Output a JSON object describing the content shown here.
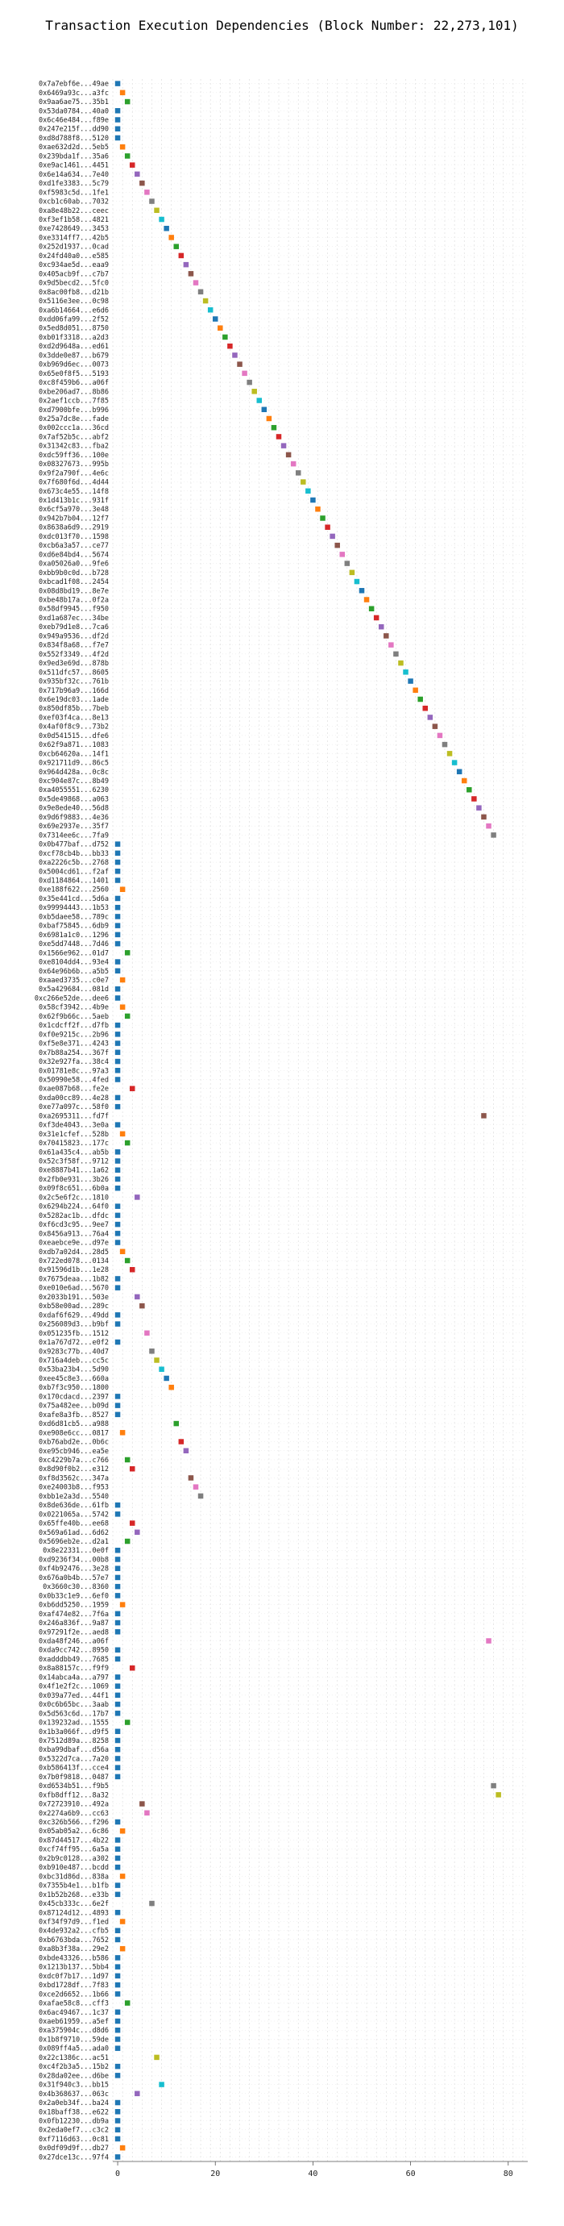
{
  "chart_data": {
    "type": "scatter",
    "title": "Transaction Execution Dependencies (Block Number: 22,273,101)",
    "xlabel": "",
    "ylabel": "",
    "xlim": [
      -1,
      84
    ],
    "xticks": [
      0,
      20,
      40,
      60,
      80
    ],
    "grid": true,
    "palette": [
      "#1f77b4",
      "#ff7f0e",
      "#2ca02c",
      "#d62728",
      "#9467bd",
      "#8c564b",
      "#e377c2",
      "#7f7f7f",
      "#bcbd22",
      "#17becf"
    ],
    "transactions": [
      {
        "hash": "0x7a7ebf6e...49ae",
        "x": 0
      },
      {
        "hash": "0x6469a93c...a3fc",
        "x": 1
      },
      {
        "hash": "0x9aa6ae75...35b1",
        "x": 2
      },
      {
        "hash": "0x53da0784...40a0",
        "x": 0
      },
      {
        "hash": "0x6c46e484...f89e",
        "x": 0
      },
      {
        "hash": "0x247e215f...dd90",
        "x": 0
      },
      {
        "hash": "0xd8d788f8...5120",
        "x": 0
      },
      {
        "hash": "0xae632d2d...5eb5",
        "x": 1
      },
      {
        "hash": "0x239bda1f...35a6",
        "x": 2
      },
      {
        "hash": "0xe9ac1461...4451",
        "x": 3
      },
      {
        "hash": "0x6e14a634...7e40",
        "x": 4
      },
      {
        "hash": "0xd1fe3383...5c79",
        "x": 5
      },
      {
        "hash": "0xf5983c5d...1fe1",
        "x": 6
      },
      {
        "hash": "0xcb1c60ab...7032",
        "x": 7
      },
      {
        "hash": "0xa8e48b22...ceec",
        "x": 8
      },
      {
        "hash": "0xf3ef1b58...4821",
        "x": 9
      },
      {
        "hash": "0xe7428649...3453",
        "x": 10
      },
      {
        "hash": "0xe3314ff7...42b5",
        "x": 11
      },
      {
        "hash": "0x252d1937...0cad",
        "x": 12
      },
      {
        "hash": "0x24fd40a0...e585",
        "x": 13
      },
      {
        "hash": "0xc934ae5d...eaa9",
        "x": 14
      },
      {
        "hash": "0x405acb9f...c7b7",
        "x": 15
      },
      {
        "hash": "0x9d5becd2...5fc0",
        "x": 16
      },
      {
        "hash": "0x8ac00fb8...d21b",
        "x": 17
      },
      {
        "hash": "0x5116e3ee...0c98",
        "x": 18
      },
      {
        "hash": "0xa6b14664...e6d6",
        "x": 19
      },
      {
        "hash": "0xdd06fa99...2f52",
        "x": 20
      },
      {
        "hash": "0x5ed8d051...8750",
        "x": 21
      },
      {
        "hash": "0xb01f3318...a2d3",
        "x": 22
      },
      {
        "hash": "0xd2d9648a...ed61",
        "x": 23
      },
      {
        "hash": "0x3dde0e87...b679",
        "x": 24
      },
      {
        "hash": "0xb969d6ec...0073",
        "x": 25
      },
      {
        "hash": "0x65e0f8f5...5193",
        "x": 26
      },
      {
        "hash": "0xc8f459b6...a06f",
        "x": 27
      },
      {
        "hash": "0xbe206ad7...8b86",
        "x": 28
      },
      {
        "hash": "0x2aef1ccb...7f85",
        "x": 29
      },
      {
        "hash": "0xd7900bfe...b996",
        "x": 30
      },
      {
        "hash": "0x25a7dc8e...fade",
        "x": 31
      },
      {
        "hash": "0x002ccc1a...36cd",
        "x": 32
      },
      {
        "hash": "0x7af52b5c...abf2",
        "x": 33
      },
      {
        "hash": "0x31342c83...fba2",
        "x": 34
      },
      {
        "hash": "0xdc59ff36...100e",
        "x": 35
      },
      {
        "hash": "0x08327673...995b",
        "x": 36
      },
      {
        "hash": "0x9f2a790f...4e6c",
        "x": 37
      },
      {
        "hash": "0x7f680f6d...4d44",
        "x": 38
      },
      {
        "hash": "0x673c4e55...14f8",
        "x": 39
      },
      {
        "hash": "0x1d413b1c...931f",
        "x": 40
      },
      {
        "hash": "0x6cf5a970...3e48",
        "x": 41
      },
      {
        "hash": "0x942b7b04...12f7",
        "x": 42
      },
      {
        "hash": "0x8638a6d9...2919",
        "x": 43
      },
      {
        "hash": "0xdc013f70...1598",
        "x": 44
      },
      {
        "hash": "0xcb6a3a57...ce77",
        "x": 45
      },
      {
        "hash": "0xd6e84bd4...5674",
        "x": 46
      },
      {
        "hash": "0xa05026a0...9fe6",
        "x": 47
      },
      {
        "hash": "0xbb9b0c0d...b728",
        "x": 48
      },
      {
        "hash": "0xbcad1f08...2454",
        "x": 49
      },
      {
        "hash": "0x08d8bd19...8e7e",
        "x": 50
      },
      {
        "hash": "0xbe48b17a...0f2a",
        "x": 51
      },
      {
        "hash": "0x58df9945...f950",
        "x": 52
      },
      {
        "hash": "0xd1a687ec...34be",
        "x": 53
      },
      {
        "hash": "0xeb79d1e8...7ca6",
        "x": 54
      },
      {
        "hash": "0x949a9536...df2d",
        "x": 55
      },
      {
        "hash": "0x834f8a68...f7e7",
        "x": 56
      },
      {
        "hash": "0x552f3349...4f2d",
        "x": 57
      },
      {
        "hash": "0x9ed3e69d...878b",
        "x": 58
      },
      {
        "hash": "0x511dfc57...8605",
        "x": 59
      },
      {
        "hash": "0x935bf32c...761b",
        "x": 60
      },
      {
        "hash": "0x717b96a9...166d",
        "x": 61
      },
      {
        "hash": "0x6e19dc03...1ade",
        "x": 62
      },
      {
        "hash": "0x850df85b...7beb",
        "x": 63
      },
      {
        "hash": "0xef03f4ca...8e13",
        "x": 64
      },
      {
        "hash": "0x4af0f8c9...73b2",
        "x": 65
      },
      {
        "hash": "0x0d541515...dfe6",
        "x": 66
      },
      {
        "hash": "0x62f9a871...1083",
        "x": 67
      },
      {
        "hash": "0xcb64620a...14f1",
        "x": 68
      },
      {
        "hash": "0x921711d9...86c5",
        "x": 69
      },
      {
        "hash": "0x964d428a...0c8c",
        "x": 70
      },
      {
        "hash": "0xc904e87c...8b49",
        "x": 71
      },
      {
        "hash": "0xa4055551...6230",
        "x": 72
      },
      {
        "hash": "0x5de49868...a063",
        "x": 73
      },
      {
        "hash": "0x9e8ede40...56d8",
        "x": 74
      },
      {
        "hash": "0x9d6f9883...4e36",
        "x": 75
      },
      {
        "hash": "0x69e2937e...35f7",
        "x": 76
      },
      {
        "hash": "0x7314ee6c...7fa9",
        "x": 77
      },
      {
        "hash": "0x0b477baf...d752",
        "x": 0
      },
      {
        "hash": "0xcf78cb4b...bb33",
        "x": 0
      },
      {
        "hash": "0xa2226c5b...2768",
        "x": 0
      },
      {
        "hash": "0x5004cd61...f2af",
        "x": 0
      },
      {
        "hash": "0xd1184864...1401",
        "x": 0
      },
      {
        "hash": "0xe188f622...2560",
        "x": 1
      },
      {
        "hash": "0x35e441cd...5d6a",
        "x": 0
      },
      {
        "hash": "0x99994443...1b53",
        "x": 0
      },
      {
        "hash": "0xb5daee58...789c",
        "x": 0
      },
      {
        "hash": "0xbaf75845...6db9",
        "x": 0
      },
      {
        "hash": "0x6981a1c0...1296",
        "x": 0
      },
      {
        "hash": "0xe5dd7448...7d46",
        "x": 0
      },
      {
        "hash": "0x1566e962...01d7",
        "x": 2
      },
      {
        "hash": "0xe8104dd4...93e4",
        "x": 0
      },
      {
        "hash": "0x64e96b6b...a5b5",
        "x": 0
      },
      {
        "hash": "0xaaed3735...c0e7",
        "x": 1
      },
      {
        "hash": "0x5a429684...081d",
        "x": 0
      },
      {
        "hash": "0xc266e52de...dee6",
        "x": 0
      },
      {
        "hash": "0x58cf3942...4b9e",
        "x": 1
      },
      {
        "hash": "0x62f9b66c...5aeb",
        "x": 2
      },
      {
        "hash": "0x1cdcff2f...d7fb",
        "x": 0
      },
      {
        "hash": "0xf0e9215c...2b96",
        "x": 0
      },
      {
        "hash": "0xf5e8e371...4243",
        "x": 0
      },
      {
        "hash": "0x7b88a254...367f",
        "x": 0
      },
      {
        "hash": "0x32e927fa...38c4",
        "x": 0
      },
      {
        "hash": "0x01781e8c...97a3",
        "x": 0
      },
      {
        "hash": "0x50990e58...4fed",
        "x": 0
      },
      {
        "hash": "0xae087b68...fe2e",
        "x": 3
      },
      {
        "hash": "0xda00cc89...4e28",
        "x": 0
      },
      {
        "hash": "0xe77a097c...58f0",
        "x": 0
      },
      {
        "hash": "0xa2695311...fd7f",
        "x": 75
      },
      {
        "hash": "0xf3de4043...3e0a",
        "x": 0
      },
      {
        "hash": "0x31e1cfef...528b",
        "x": 1
      },
      {
        "hash": "0x70415823...177c",
        "x": 2
      },
      {
        "hash": "0x61a435c4...ab5b",
        "x": 0
      },
      {
        "hash": "0x52c3f58f...9712",
        "x": 0
      },
      {
        "hash": "0xe8887b41...1a62",
        "x": 0
      },
      {
        "hash": "0x2fb0e931...3b26",
        "x": 0
      },
      {
        "hash": "0x09f8c651...6b0a",
        "x": 0
      },
      {
        "hash": "0x2c5e6f2c...1810",
        "x": 4
      },
      {
        "hash": "0x6294b224...64f0",
        "x": 0
      },
      {
        "hash": "0x5282ac1b...dfdc",
        "x": 0
      },
      {
        "hash": "0xf6cd3c95...9ee7",
        "x": 0
      },
      {
        "hash": "0x8456a913...76a4",
        "x": 0
      },
      {
        "hash": "0xeaebce9e...d97e",
        "x": 0
      },
      {
        "hash": "0xdb7a02d4...28d5",
        "x": 1
      },
      {
        "hash": "0x722ed078...0134",
        "x": 2
      },
      {
        "hash": "0x91596d1b...1e28",
        "x": 3
      },
      {
        "hash": "0x7675deaa...1b82",
        "x": 0
      },
      {
        "hash": "0xe010e6ad...5670",
        "x": 0
      },
      {
        "hash": "0x2033b191...503e",
        "x": 4
      },
      {
        "hash": "0xb58e00ad...289c",
        "x": 5
      },
      {
        "hash": "0xdaf6f629...49dd",
        "x": 0
      },
      {
        "hash": "0x256089d3...b9bf",
        "x": 0
      },
      {
        "hash": "0x051235fb...1512",
        "x": 6
      },
      {
        "hash": "0x1a767d72...e0f2",
        "x": 0
      },
      {
        "hash": "0x9283c77b...40d7",
        "x": 7
      },
      {
        "hash": "0x716a4deb...cc5c",
        "x": 8
      },
      {
        "hash": "0x53ba23b4...5d90",
        "x": 9
      },
      {
        "hash": "0xee45c8e3...660a",
        "x": 10
      },
      {
        "hash": "0xb7f3c950...1800",
        "x": 11
      },
      {
        "hash": "0x170cdacd...2397",
        "x": 0
      },
      {
        "hash": "0x75a482ee...b09d",
        "x": 0
      },
      {
        "hash": "0xafe8a3fb...8527",
        "x": 0
      },
      {
        "hash": "0xd6d81cb5...a988",
        "x": 12
      },
      {
        "hash": "0xe908e6cc...0817",
        "x": 1
      },
      {
        "hash": "0xb76abd2e...0b6c",
        "x": 13
      },
      {
        "hash": "0xe95cb946...ea5e",
        "x": 14
      },
      {
        "hash": "0xc4229b7a...c766",
        "x": 2
      },
      {
        "hash": "0x8d90f0b2...e312",
        "x": 3
      },
      {
        "hash": "0xf8d3562c...347a",
        "x": 15
      },
      {
        "hash": "0xe24003b8...f953",
        "x": 16
      },
      {
        "hash": "0xbb1e2a3d...5540",
        "x": 17
      },
      {
        "hash": "0x8de636de...61fb",
        "x": 0
      },
      {
        "hash": "0x0221065a...5742",
        "x": 0
      },
      {
        "hash": "0x65ffe40b...ee68",
        "x": 3
      },
      {
        "hash": "0x569a61ad...6d62",
        "x": 4
      },
      {
        "hash": "0x5696eb2e...d2a1",
        "x": 2
      },
      {
        "hash": "0x8e22331...0e0f",
        "x": 0
      },
      {
        "hash": "0xd9236f34...00b8",
        "x": 0
      },
      {
        "hash": "0xf4b92476...3e28",
        "x": 0
      },
      {
        "hash": "0x676a0b4b...57e7",
        "x": 0
      },
      {
        "hash": "0x3660c30...8360",
        "x": 0
      },
      {
        "hash": "0x0b33c1e9...6ef0",
        "x": 0
      },
      {
        "hash": "0xb6dd5250...1959",
        "x": 1
      },
      {
        "hash": "0xaf474e82...7f6a",
        "x": 0
      },
      {
        "hash": "0x246a836f...9a87",
        "x": 0
      },
      {
        "hash": "0x97291f2e...aed8",
        "x": 0
      },
      {
        "hash": "0xda48f246...a06f",
        "x": 76
      },
      {
        "hash": "0xda9cc742...8950",
        "x": 0
      },
      {
        "hash": "0xadddbb49...7685",
        "x": 0
      },
      {
        "hash": "0x8a88157c...f9f9",
        "x": 3
      },
      {
        "hash": "0x14abca4a...a797",
        "x": 0
      },
      {
        "hash": "0x4f1e2f2c...1069",
        "x": 0
      },
      {
        "hash": "0x039a77ed...44f1",
        "x": 0
      },
      {
        "hash": "0x0c6b65bc...3aab",
        "x": 0
      },
      {
        "hash": "0x5d563c6d...17b7",
        "x": 0
      },
      {
        "hash": "0x139232ad...1555",
        "x": 2
      },
      {
        "hash": "0x1b3a066f...d9f5",
        "x": 0
      },
      {
        "hash": "0x7512d89a...8258",
        "x": 0
      },
      {
        "hash": "0xba99dbaf...d56a",
        "x": 0
      },
      {
        "hash": "0x5322d7ca...7a20",
        "x": 0
      },
      {
        "hash": "0xb586413f...cce4",
        "x": 0
      },
      {
        "hash": "0x7b0f9818...0487",
        "x": 0
      },
      {
        "hash": "0xd6534b51...f9b5",
        "x": 77
      },
      {
        "hash": "0xfb8dff12...8a32",
        "x": 78
      },
      {
        "hash": "0x72723910...492a",
        "x": 5
      },
      {
        "hash": "0x2274a6b9...cc63",
        "x": 6
      },
      {
        "hash": "0xc326b566...f296",
        "x": 0
      },
      {
        "hash": "0x05ab05a2...6c86",
        "x": 1
      },
      {
        "hash": "0x87d44517...4b22",
        "x": 0
      },
      {
        "hash": "0xcf74ff95...6a5a",
        "x": 0
      },
      {
        "hash": "0x2b9c0128...a302",
        "x": 0
      },
      {
        "hash": "0xb910e487...bcdd",
        "x": 0
      },
      {
        "hash": "0xbc31d86d...838a",
        "x": 1
      },
      {
        "hash": "0x7355b4e1...b1fb",
        "x": 0
      },
      {
        "hash": "0x1b52b268...e33b",
        "x": 0
      },
      {
        "hash": "0x45cb333c...6e2f",
        "x": 7
      },
      {
        "hash": "0x87124d12...4893",
        "x": 0
      },
      {
        "hash": "0xf34f97d9...f1ed",
        "x": 1
      },
      {
        "hash": "0x4de932a2...cfb5",
        "x": 0
      },
      {
        "hash": "0xb6763bda...7652",
        "x": 0
      },
      {
        "hash": "0xa8b3f38a...29e2",
        "x": 1
      },
      {
        "hash": "0xbde43326...b586",
        "x": 0
      },
      {
        "hash": "0x1213b137...5bb4",
        "x": 0
      },
      {
        "hash": "0xdc0f7b17...1d97",
        "x": 0
      },
      {
        "hash": "0xbd1728df...7f83",
        "x": 0
      },
      {
        "hash": "0xce2d6652...1b66",
        "x": 0
      },
      {
        "hash": "0xafae58c8...cff3",
        "x": 2
      },
      {
        "hash": "0x6ac49467...1c37",
        "x": 0
      },
      {
        "hash": "0xaeb61959...a5ef",
        "x": 0
      },
      {
        "hash": "0xa375904c...d8d6",
        "x": 0
      },
      {
        "hash": "0x1b8f9710...59de",
        "x": 0
      },
      {
        "hash": "0x089ff4a5...ada0",
        "x": 0
      },
      {
        "hash": "0x22c1386c...ac51",
        "x": 8
      },
      {
        "hash": "0xc4f2b3a5...15b2",
        "x": 0
      },
      {
        "hash": "0x28da02ee...d6be",
        "x": 0
      },
      {
        "hash": "0x31f940c3...bb15",
        "x": 9
      },
      {
        "hash": "0x4b368637...063c",
        "x": 4
      },
      {
        "hash": "0x2a0eb34f...ba24",
        "x": 0
      },
      {
        "hash": "0x18baff38...e622",
        "x": 0
      },
      {
        "hash": "0x0fb12230...db9a",
        "x": 0
      },
      {
        "hash": "0x2eda0ef7...c3c2",
        "x": 0
      },
      {
        "hash": "0xf7116d63...0c81",
        "x": 0
      },
      {
        "hash": "0x0df09d9f...db27",
        "x": 1
      },
      {
        "hash": "0x27dce13c...97f4",
        "x": 0
      }
    ]
  }
}
